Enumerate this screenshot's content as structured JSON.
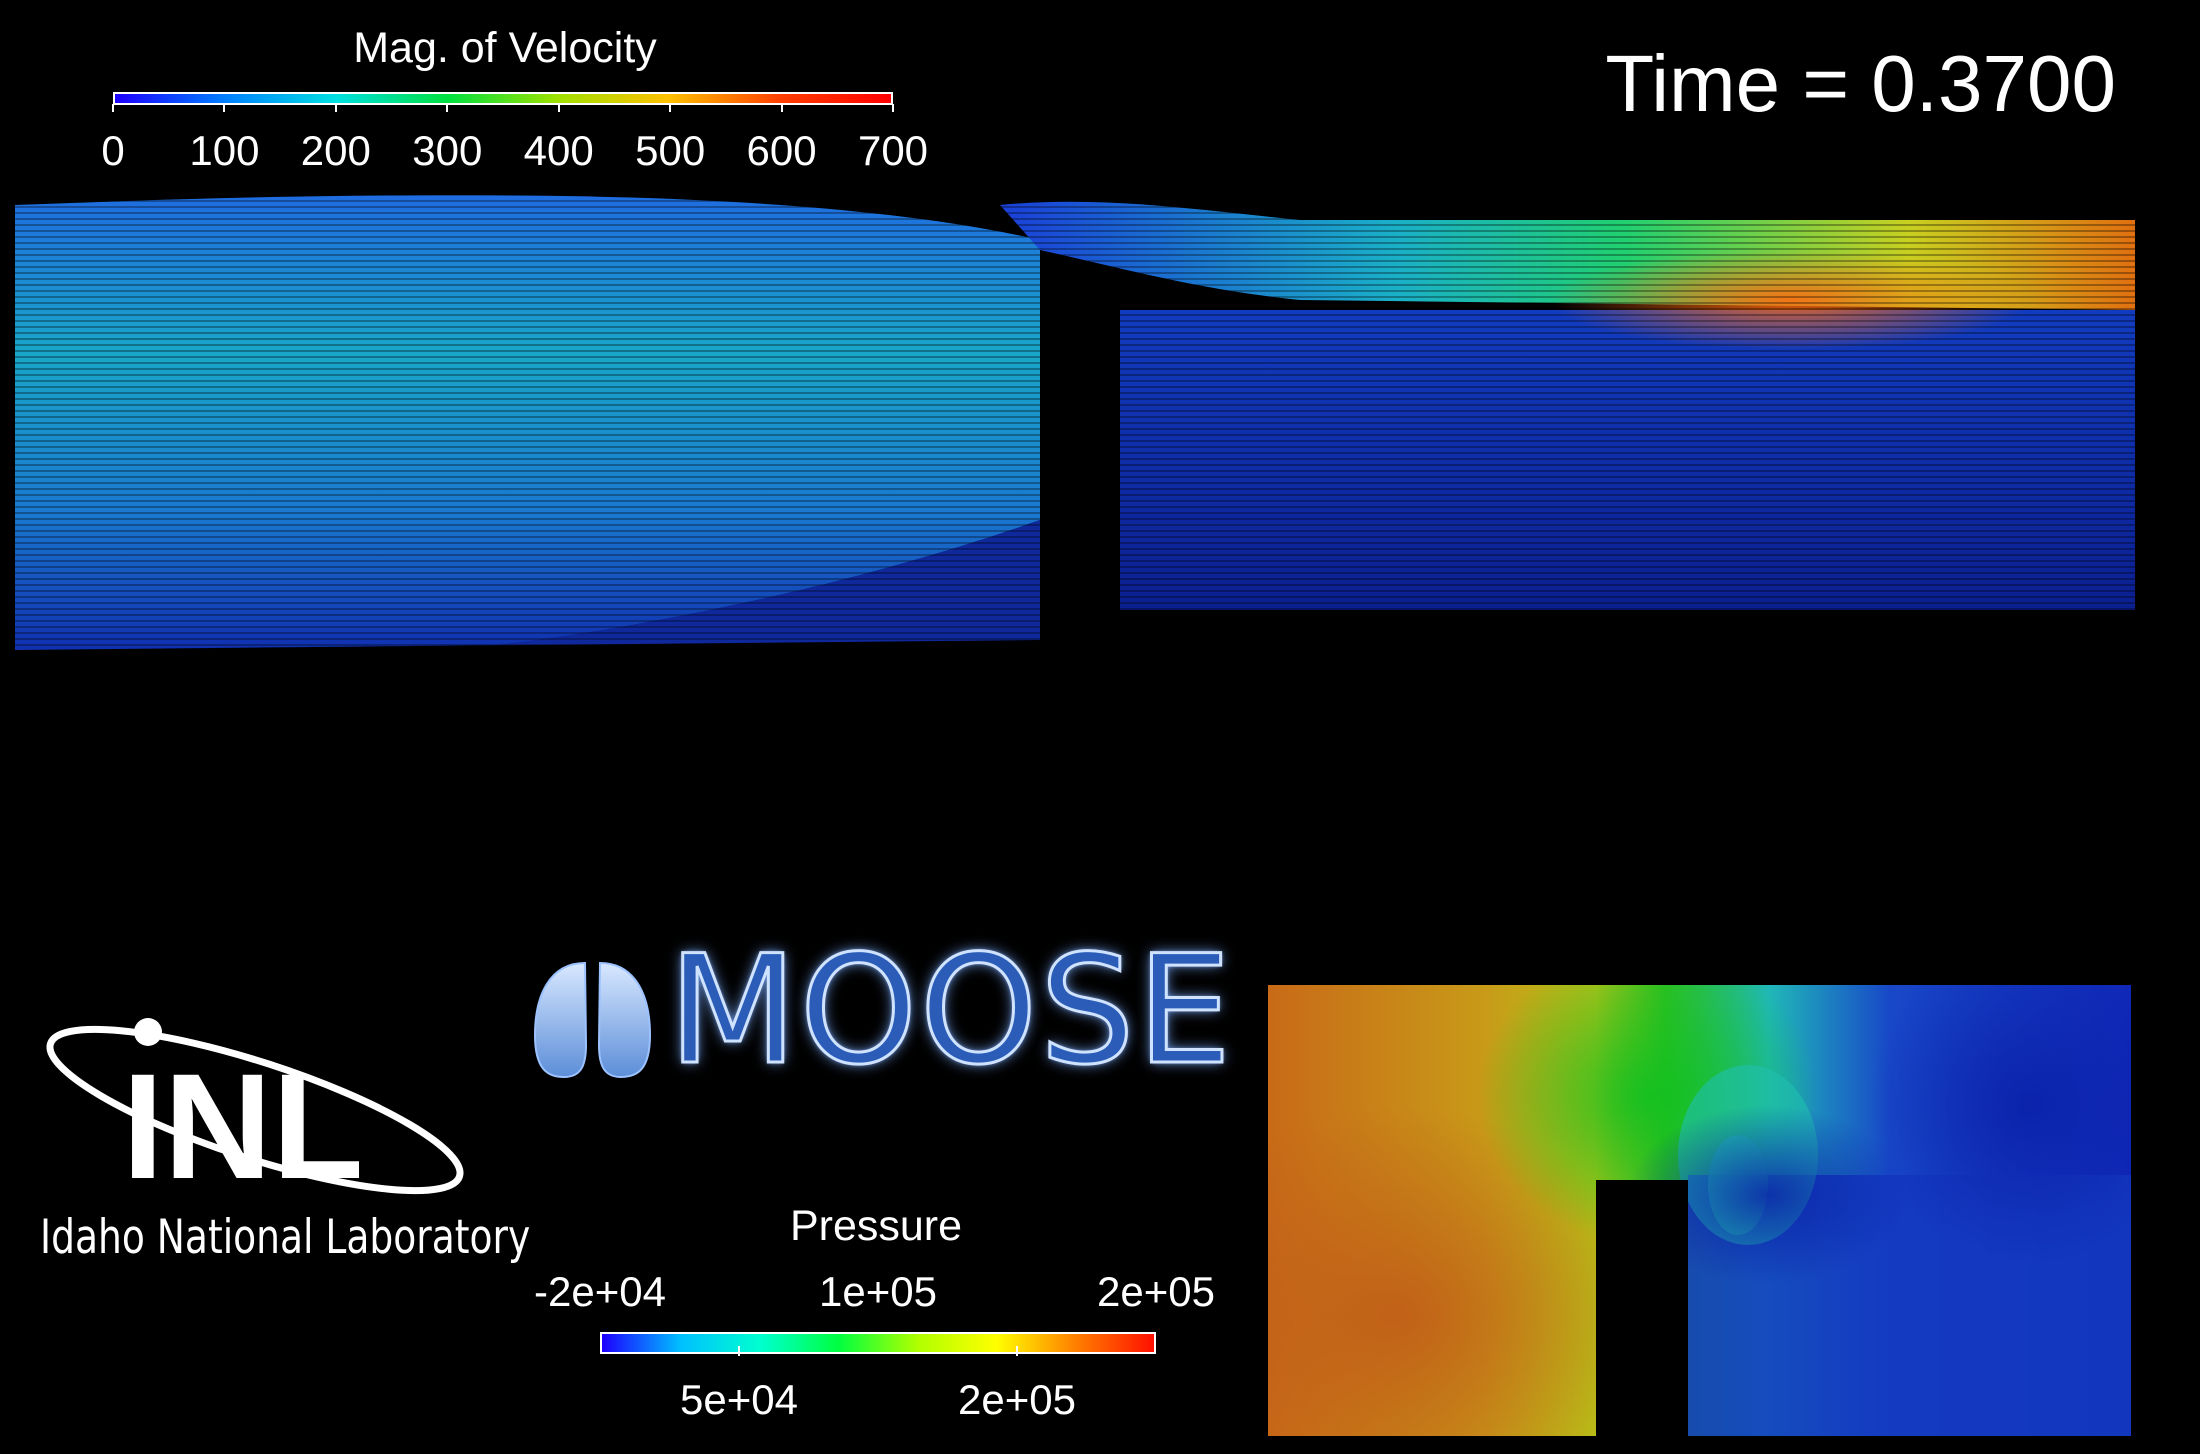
{
  "time": {
    "label": "Time = 0.3700"
  },
  "velocity_legend": {
    "title": "Mag. of Velocity",
    "range": [
      0,
      700
    ],
    "ticks": [
      "0",
      "100",
      "200",
      "300",
      "400",
      "500",
      "600",
      "700"
    ],
    "colormap": [
      "#1e00ff",
      "#0080ff",
      "#00e0e0",
      "#00e040",
      "#a0e000",
      "#ffc000",
      "#ff4000",
      "#ff0000"
    ]
  },
  "pressure_legend": {
    "title": "Pressure",
    "top_ticks": [
      "-2e+04",
      "1e+05",
      "2e+05"
    ],
    "bottom_ticks": [
      "5e+04",
      "2e+05"
    ],
    "colormap": [
      "#1e00ff",
      "#00c0ff",
      "#00ffd0",
      "#00ff40",
      "#b0ff00",
      "#ffff00",
      "#ff8000",
      "#ff1000"
    ]
  },
  "logos": {
    "moose": "MOOSE",
    "inl_mark": "INL",
    "inl_subtitle": "Idaho National Laboratory"
  },
  "colors": {
    "background": "#000000",
    "text": "#ffffff",
    "moose_blue": "#2a5cb8"
  }
}
